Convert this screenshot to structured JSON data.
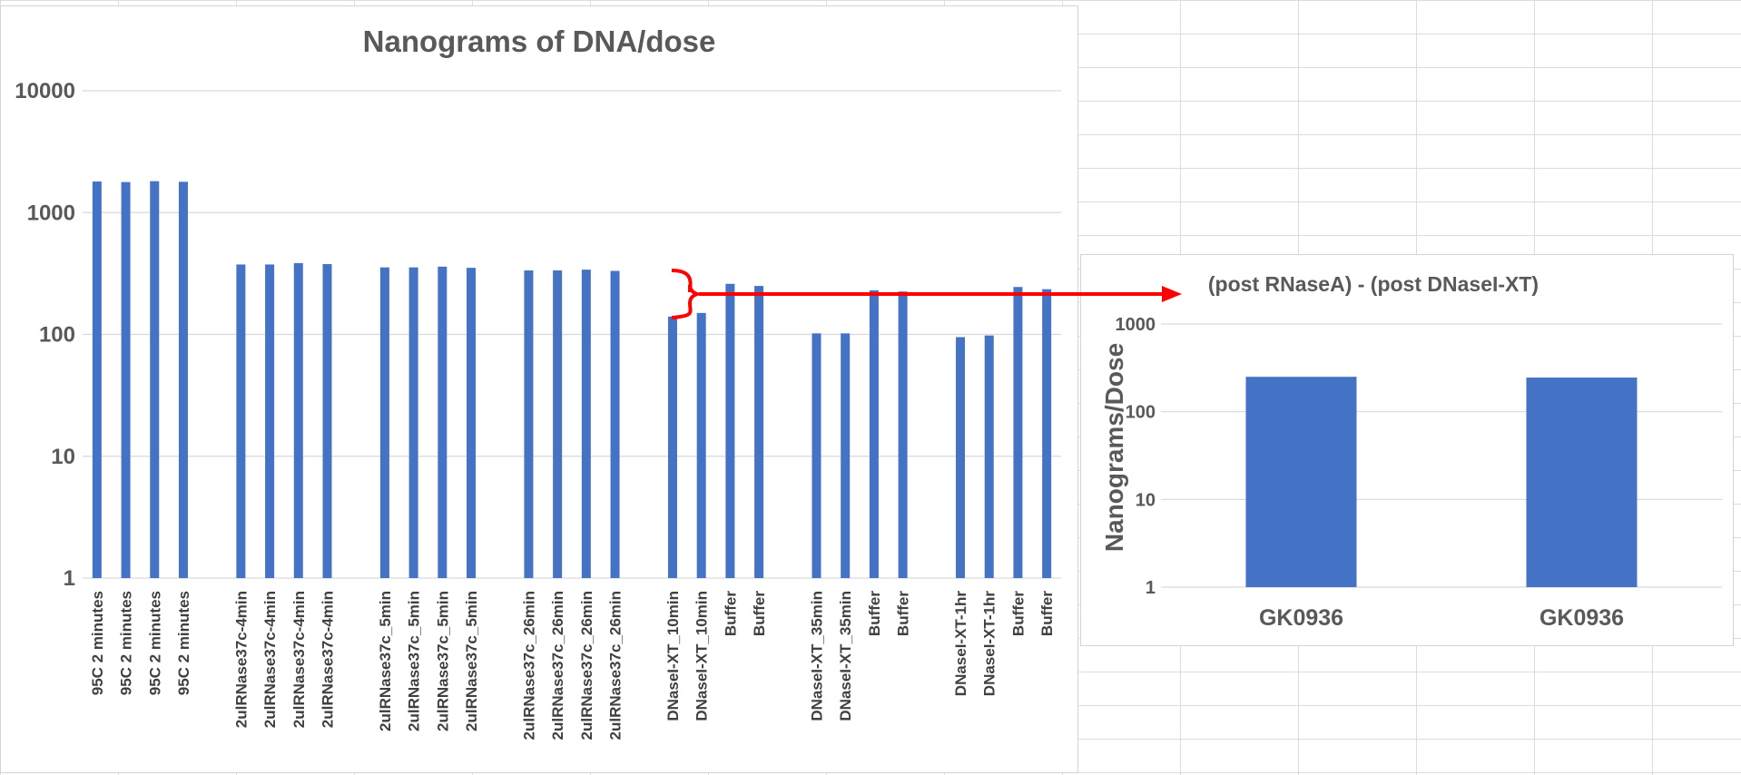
{
  "chart_data": [
    {
      "type": "bar",
      "title": "Nanograms of DNA/dose",
      "xlabel": "",
      "ylabel": "",
      "yscale": "log",
      "ylim": [
        1,
        10000
      ],
      "yticks": [
        "1",
        "10",
        "100",
        "1000",
        "10000"
      ],
      "grid": true,
      "legend": "none",
      "color": "#4472c4",
      "groups": [
        {
          "categories": [
            "95C 2 minutes",
            "95C 2 minutes",
            "95C 2 minutes",
            "95C 2 minutes"
          ],
          "values": [
            1800,
            1780,
            1810,
            1790
          ]
        },
        {
          "categories": [
            "2ulRNase37c-4min",
            "2ulRNase37c-4min",
            "2ulRNase37c-4min",
            "2ulRNase37c-4min"
          ],
          "values": [
            375,
            375,
            385,
            378
          ]
        },
        {
          "categories": [
            "2ulRNase37c_5min",
            "2ulRNase37c_5min",
            "2ulRNase37c_5min",
            "2ulRNase37c_5min"
          ],
          "values": [
            355,
            355,
            360,
            352
          ]
        },
        {
          "categories": [
            "2ulRNase37c_26min",
            "2ulRNase37c_26min",
            "2ulRNase37c_26min",
            "2ulRNase37c_26min"
          ],
          "values": [
            335,
            335,
            340,
            332
          ]
        },
        {
          "categories": [
            "DNaseI-XT_10min",
            "DNaseI-XT_10min",
            "Buffer",
            "Buffer"
          ],
          "values": [
            140,
            150,
            260,
            250
          ]
        },
        {
          "categories": [
            "DNaseI-XT_35min",
            "DNaseI-XT_35min",
            "Buffer",
            "Buffer"
          ],
          "values": [
            102,
            102,
            230,
            225
          ]
        },
        {
          "categories": [
            "DNaseI-XT-1hr",
            "DNaseI-XT-1hr",
            "Buffer",
            "Buffer"
          ],
          "values": [
            95,
            98,
            245,
            235
          ]
        }
      ]
    },
    {
      "type": "bar",
      "title": "(post RNaseA) - (post DNaseI-XT)",
      "xlabel": "",
      "ylabel": "Nanograms/Dose",
      "yscale": "log",
      "ylim": [
        1,
        1000
      ],
      "yticks": [
        "1",
        "10",
        "100",
        "1000"
      ],
      "grid": true,
      "legend": "none",
      "color": "#4472c4",
      "categories": [
        "GK0936",
        "GK0936"
      ],
      "values": [
        250,
        245
      ]
    }
  ],
  "annotation": {
    "arrow_color": "#ff0000"
  }
}
